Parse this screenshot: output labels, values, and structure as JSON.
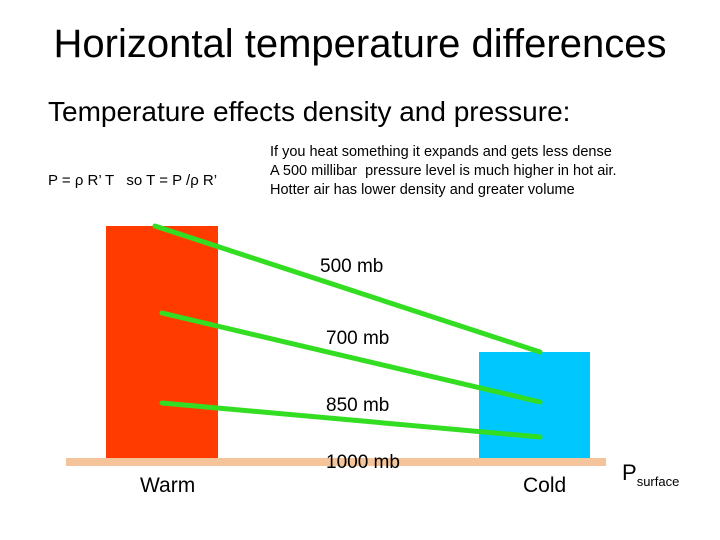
{
  "slide": {
    "title": "Horizontal temperature differences",
    "subtitle": "Temperature effects density and pressure:",
    "formula": "P = ρ R’ T   so T = P /ρ R’",
    "explanation": [
      "If you heat something it expands and gets less dense",
      "A 500 millibar  pressure level is much higher in hot air.",
      "Hotter air has lower density and greater volume"
    ]
  },
  "diagram": {
    "levels": [
      {
        "label": "500 mb",
        "warm_height": "high",
        "cold_height": "low"
      },
      {
        "label": "700 mb"
      },
      {
        "label": "850 mb"
      },
      {
        "label": "1000 mb"
      }
    ],
    "warm_label": "Warm",
    "cold_label": "Cold",
    "surface_label": "P",
    "surface_subscript": "surface"
  },
  "colors": {
    "warm": "#ff3b00",
    "cold": "#00c8ff",
    "ground": "#f5c49a",
    "pressure_line": "#33dd22"
  }
}
